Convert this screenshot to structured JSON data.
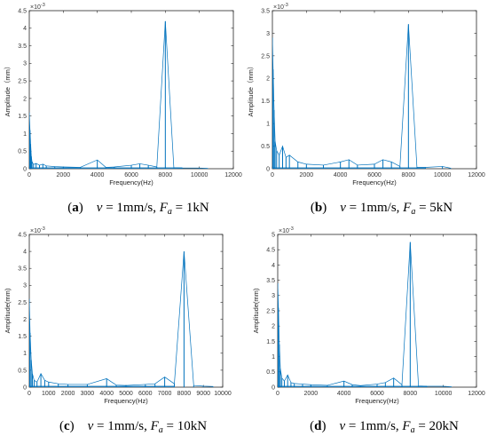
{
  "chart_data": [
    {
      "type": "line",
      "panel": "a",
      "caption": {
        "letter": "a",
        "v": "v",
        "v_value": " = 1mm/s, ",
        "f": "F",
        "f_sub": "a",
        "f_value": " = 1kN"
      },
      "xlabel": "Frequency(Hz)",
      "ylabel": "Amplitude（mm）",
      "y_exponent": "×10",
      "y_exponent_power": "-3",
      "xlim": [
        0,
        12000
      ],
      "ylim": [
        0,
        4.5
      ],
      "xticks": [
        0,
        2000,
        4000,
        6000,
        8000,
        10000,
        12000
      ],
      "yticks": [
        0,
        0.5,
        1,
        1.5,
        2,
        2.5,
        3,
        3.5,
        4,
        4.5
      ],
      "xtick_labels": [
        "0",
        "2000",
        "4000",
        "6000",
        "8000",
        "10000",
        "12000"
      ],
      "ytick_labels": [
        "0",
        "0.5",
        "1",
        "1.5",
        "2",
        "2.5",
        "3",
        "3.5",
        "4",
        "4.5"
      ],
      "series": [
        {
          "x": [
            0,
            40,
            80,
            120,
            160,
            250,
            400,
            600,
            800,
            1000,
            1500,
            2000,
            3000,
            4000,
            4500,
            5000,
            6000,
            6500,
            7000,
            7500,
            8000,
            8500,
            9000,
            10000,
            10500
          ],
          "y": [
            1.6,
            1.1,
            0.7,
            0.35,
            0.2,
            0.12,
            0.15,
            0.1,
            0.13,
            0.08,
            0.06,
            0.05,
            0.04,
            0.25,
            0.04,
            0.05,
            0.1,
            0.14,
            0.1,
            0.05,
            4.2,
            0.03,
            0.02,
            0.02,
            0.01
          ]
        }
      ]
    },
    {
      "type": "line",
      "panel": "b",
      "caption": {
        "letter": "b",
        "v": "v",
        "v_value": " = 1mm/s, ",
        "f": "F",
        "f_sub": "a",
        "f_value": " = 5kN"
      },
      "xlabel": "Frequency(Hz)",
      "ylabel": "Amplitude（mm）",
      "y_exponent": "×10",
      "y_exponent_power": "-3",
      "xlim": [
        0,
        12000
      ],
      "ylim": [
        0,
        3.5
      ],
      "xticks": [
        0,
        2000,
        4000,
        6000,
        8000,
        10000,
        12000
      ],
      "yticks": [
        0,
        0.5,
        1,
        1.5,
        2,
        2.5,
        3,
        3.5
      ],
      "xtick_labels": [
        "0",
        "2000",
        "4000",
        "6000",
        "8000",
        "10000",
        "12000"
      ],
      "ytick_labels": [
        "0",
        "0.5",
        "1",
        "1.5",
        "2",
        "2.5",
        "3",
        "3.5"
      ],
      "series": [
        {
          "x": [
            0,
            40,
            100,
            160,
            250,
            400,
            600,
            800,
            1000,
            1500,
            2000,
            3000,
            4000,
            4500,
            5000,
            6000,
            6500,
            7000,
            7500,
            8000,
            8500,
            9000,
            10000,
            10500
          ],
          "y": [
            2.9,
            2.2,
            1.3,
            0.6,
            0.4,
            0.3,
            0.5,
            0.25,
            0.3,
            0.15,
            0.1,
            0.08,
            0.15,
            0.2,
            0.08,
            0.1,
            0.2,
            0.15,
            0.05,
            3.2,
            0.03,
            0.03,
            0.05,
            0.01
          ]
        }
      ]
    },
    {
      "type": "line",
      "panel": "c",
      "caption": {
        "letter": "c",
        "v": "v",
        "v_value": " = 1mm/s, ",
        "f": "F",
        "f_sub": "a",
        "f_value": " = 10kN"
      },
      "xlabel": "Frequency(Hz)",
      "ylabel": "Amplitude(mm)",
      "y_exponent": "×10",
      "y_exponent_power": "-3",
      "xlim": [
        0,
        10000
      ],
      "ylim": [
        0,
        4.5
      ],
      "xticks": [
        0,
        1000,
        2000,
        3000,
        4000,
        5000,
        6000,
        7000,
        8000,
        9000,
        10000
      ],
      "yticks": [
        0,
        0.5,
        1,
        1.5,
        2,
        2.5,
        3,
        3.5,
        4,
        4.5
      ],
      "xtick_labels": [
        "0",
        "1000",
        "2000",
        "3000",
        "4000",
        "5000",
        "6000",
        "7000",
        "8000",
        "9000",
        "10000"
      ],
      "ytick_labels": [
        "0",
        "0.5",
        "1",
        "1.5",
        "2",
        "2.5",
        "3",
        "3.5",
        "4",
        "4.5"
      ],
      "series": [
        {
          "x": [
            0,
            40,
            100,
            160,
            250,
            400,
            600,
            800,
            1000,
            1500,
            2000,
            3000,
            4000,
            4500,
            5000,
            6000,
            6500,
            7000,
            7500,
            8000,
            8500,
            9000,
            9500
          ],
          "y": [
            2.6,
            1.6,
            0.8,
            0.4,
            0.2,
            0.15,
            0.4,
            0.2,
            0.15,
            0.1,
            0.08,
            0.08,
            0.25,
            0.06,
            0.05,
            0.08,
            0.1,
            0.3,
            0.1,
            4.0,
            0.05,
            0.03,
            0.02
          ]
        }
      ]
    },
    {
      "type": "line",
      "panel": "d",
      "caption": {
        "letter": "d",
        "v": "v",
        "v_value": " = 1mm/s, ",
        "f": "F",
        "f_sub": "a",
        "f_value": " = 20kN"
      },
      "xlabel": "Frequency(Hz)",
      "ylabel": "Amplitude(mm)",
      "y_exponent": "×10",
      "y_exponent_power": "-3",
      "xlim": [
        0,
        12000
      ],
      "ylim": [
        0,
        5
      ],
      "xticks": [
        0,
        2000,
        4000,
        6000,
        8000,
        10000,
        12000
      ],
      "yticks": [
        0,
        0.5,
        1,
        1.5,
        2,
        2.5,
        3,
        3.5,
        4,
        4.5,
        5
      ],
      "xtick_labels": [
        "0",
        "2000",
        "4000",
        "6000",
        "8000",
        "10000",
        "12000"
      ],
      "ytick_labels": [
        "0",
        "0.5",
        "1",
        "1.5",
        "2",
        "2.5",
        "3",
        "3.5",
        "4",
        "4.5",
        "5"
      ],
      "series": [
        {
          "x": [
            0,
            40,
            100,
            160,
            250,
            400,
            600,
            800,
            1000,
            1500,
            2000,
            3000,
            4000,
            4500,
            5000,
            6000,
            6500,
            7000,
            7500,
            8000,
            8500,
            9000,
            10000,
            10500
          ],
          "y": [
            3.4,
            2.6,
            1.4,
            0.6,
            0.3,
            0.2,
            0.4,
            0.15,
            0.12,
            0.1,
            0.08,
            0.06,
            0.2,
            0.08,
            0.05,
            0.1,
            0.15,
            0.3,
            0.08,
            4.75,
            0.04,
            0.03,
            0.03,
            0.01
          ]
        }
      ]
    }
  ],
  "colors": {
    "line": "#0072bd",
    "axis": "#262626",
    "text": "#000000"
  }
}
